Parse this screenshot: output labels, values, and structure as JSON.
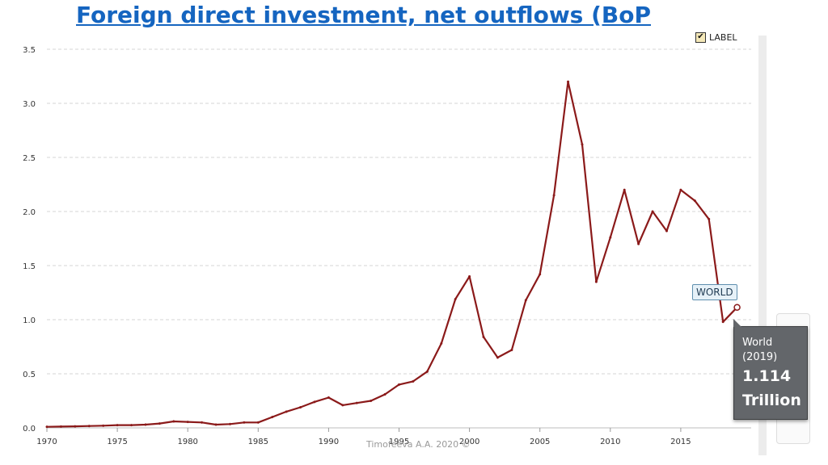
{
  "chart_data": {
    "type": "line",
    "title": "Foreign direct investment, net outflows (BoP",
    "xlabel": "",
    "ylabel": "",
    "xlim": [
      1970,
      2020
    ],
    "ylim": [
      0,
      3.5
    ],
    "x_ticks": [
      "1970",
      "1975",
      "1980",
      "1985",
      "1990",
      "1995",
      "2000",
      "2005",
      "2010",
      "2015"
    ],
    "y_ticks": [
      "0.0",
      "0.5",
      "1.0",
      "1.5",
      "2.0",
      "2.5",
      "3.0",
      "3.5"
    ],
    "grid": "horizontal-dashed",
    "series": [
      {
        "name": "WORLD",
        "color": "#8b1a1a",
        "x": [
          1970,
          1971,
          1972,
          1973,
          1974,
          1975,
          1976,
          1977,
          1978,
          1979,
          1980,
          1981,
          1982,
          1983,
          1984,
          1985,
          1986,
          1987,
          1988,
          1989,
          1990,
          1991,
          1992,
          1993,
          1994,
          1995,
          1996,
          1997,
          1998,
          1999,
          2000,
          2001,
          2002,
          2003,
          2004,
          2005,
          2006,
          2007,
          2008,
          2009,
          2010,
          2011,
          2012,
          2013,
          2014,
          2015,
          2016,
          2017,
          2018,
          2019
        ],
        "values": [
          0.01,
          0.012,
          0.014,
          0.017,
          0.02,
          0.025,
          0.025,
          0.03,
          0.04,
          0.06,
          0.055,
          0.05,
          0.03,
          0.035,
          0.05,
          0.05,
          0.1,
          0.15,
          0.19,
          0.24,
          0.28,
          0.21,
          0.23,
          0.25,
          0.31,
          0.4,
          0.43,
          0.52,
          0.78,
          1.19,
          1.4,
          0.84,
          0.65,
          0.72,
          1.18,
          1.42,
          2.15,
          3.2,
          2.62,
          1.35,
          1.76,
          2.2,
          1.7,
          2.0,
          1.82,
          2.2,
          2.1,
          1.93,
          0.98,
          1.114
        ]
      }
    ],
    "legend": "none"
  },
  "legend_toggle": {
    "label": "LABEL",
    "checked": "✔"
  },
  "series_flag": "WORLD",
  "tooltip": {
    "name": "World",
    "year": "(2019)",
    "value": "1.114",
    "unit": "Trillion"
  },
  "credit": "Timofeeva A.A. 2020 ©"
}
